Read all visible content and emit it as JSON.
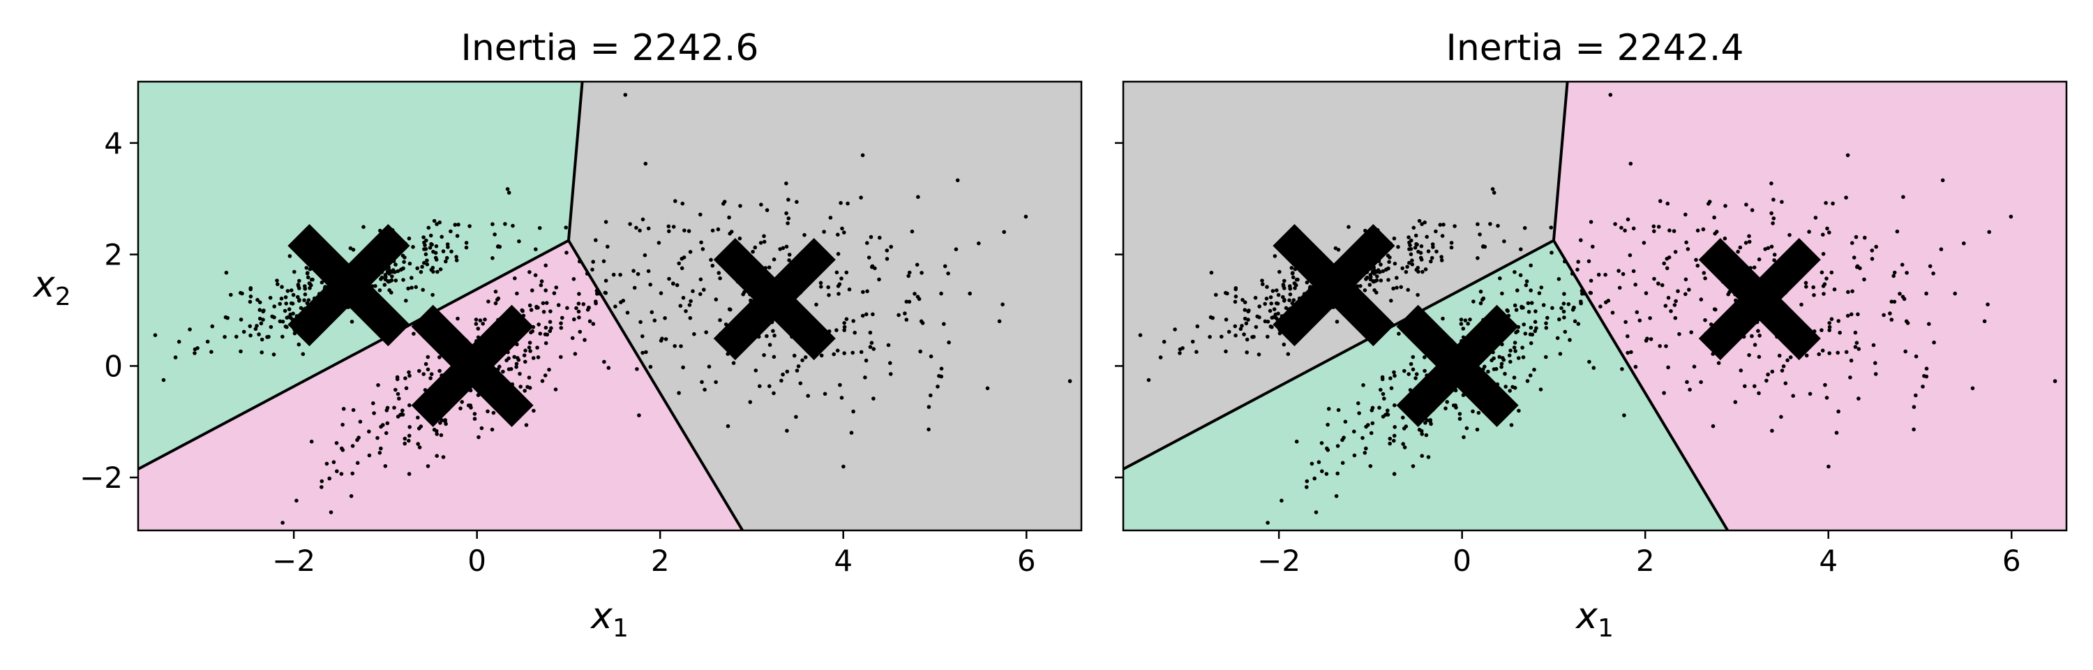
{
  "colors": {
    "region_green": "#b2e3ce",
    "region_pink": "#f3c8e3",
    "region_gray": "#cccccc",
    "boundary": "#000000",
    "points": "#000000",
    "centroid": "#000000"
  },
  "chart_data": [
    {
      "type": "scatter",
      "title": "Inertia = 2242.6",
      "xlabel_main": "x",
      "xlabel_sub": "1",
      "ylabel_main": "x",
      "ylabel_sub": "2",
      "xlim": [
        -3.7,
        6.6
      ],
      "ylim": [
        -2.95,
        5.1
      ],
      "xticks": [
        -2,
        0,
        2,
        4,
        6
      ],
      "xtick_labels": [
        "−2",
        "0",
        "2",
        "4",
        "6"
      ],
      "yticks": [
        -2,
        0,
        2,
        4
      ],
      "ytick_labels": [
        "−2",
        "0",
        "2",
        "4"
      ],
      "show_ytick_labels": true,
      "centroids": [
        {
          "x": -1.4,
          "y": 1.45
        },
        {
          "x": -0.05,
          "y": 0.0
        },
        {
          "x": 3.25,
          "y": 1.2
        }
      ],
      "regions": [
        {
          "color_key": "region_green",
          "polygon": [
            [
              -3.7,
              5.1
            ],
            [
              1.15,
              5.1
            ],
            [
              1.0,
              2.25
            ],
            [
              -3.7,
              -1.85
            ]
          ]
        },
        {
          "color_key": "region_pink",
          "polygon": [
            [
              -3.7,
              -1.85
            ],
            [
              1.0,
              2.25
            ],
            [
              2.9,
              -2.95
            ],
            [
              -3.7,
              -2.95
            ]
          ]
        },
        {
          "color_key": "region_gray",
          "polygon": [
            [
              1.15,
              5.1
            ],
            [
              6.6,
              5.1
            ],
            [
              6.6,
              -2.95
            ],
            [
              2.9,
              -2.95
            ],
            [
              1.0,
              2.25
            ]
          ]
        }
      ],
      "boundaries": [
        [
          [
            -3.7,
            -1.85
          ],
          [
            1.0,
            2.25
          ]
        ],
        [
          [
            1.0,
            2.25
          ],
          [
            1.15,
            5.1
          ]
        ],
        [
          [
            1.0,
            2.25
          ],
          [
            2.9,
            -2.95
          ]
        ]
      ]
    },
    {
      "type": "scatter",
      "title": "Inertia = 2242.4",
      "xlabel_main": "x",
      "xlabel_sub": "1",
      "ylabel_main": "",
      "ylabel_sub": "",
      "xlim": [
        -3.7,
        6.6
      ],
      "ylim": [
        -2.95,
        5.1
      ],
      "xticks": [
        -2,
        0,
        2,
        4,
        6
      ],
      "xtick_labels": [
        "−2",
        "0",
        "2",
        "4",
        "6"
      ],
      "yticks": [
        -2,
        0,
        2,
        4
      ],
      "ytick_labels": [],
      "show_ytick_labels": false,
      "centroids": [
        {
          "x": -1.4,
          "y": 1.45
        },
        {
          "x": -0.05,
          "y": 0.0
        },
        {
          "x": 3.25,
          "y": 1.2
        }
      ],
      "regions": [
        {
          "color_key": "region_gray",
          "polygon": [
            [
              -3.7,
              5.1
            ],
            [
              1.15,
              5.1
            ],
            [
              1.0,
              2.25
            ],
            [
              -3.7,
              -1.85
            ]
          ]
        },
        {
          "color_key": "region_green",
          "polygon": [
            [
              -3.7,
              -1.85
            ],
            [
              1.0,
              2.25
            ],
            [
              2.9,
              -2.95
            ],
            [
              -3.7,
              -2.95
            ]
          ]
        },
        {
          "color_key": "region_pink",
          "polygon": [
            [
              1.15,
              5.1
            ],
            [
              6.6,
              5.1
            ],
            [
              6.6,
              -2.95
            ],
            [
              2.9,
              -2.95
            ],
            [
              1.0,
              2.25
            ]
          ]
        }
      ],
      "boundaries": [
        [
          [
            -3.7,
            -1.85
          ],
          [
            1.0,
            2.25
          ]
        ],
        [
          [
            1.0,
            2.25
          ],
          [
            1.15,
            5.1
          ]
        ],
        [
          [
            1.0,
            2.25
          ],
          [
            2.9,
            -2.95
          ]
        ]
      ]
    }
  ]
}
